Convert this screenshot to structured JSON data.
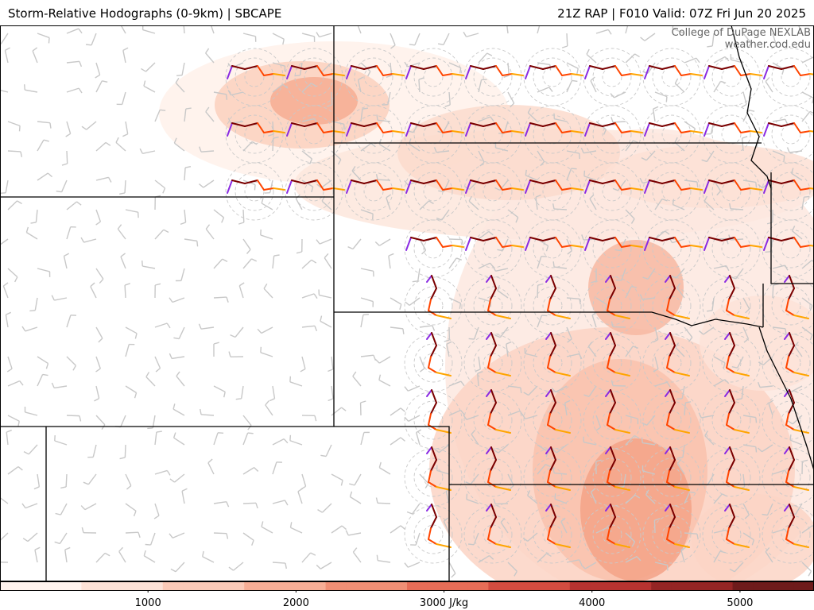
{
  "header": {
    "title_left": "Storm-Relative Hodographs (0-9km) | SBCAPE",
    "title_right": "21Z RAP | F010 Valid: 07Z Fri Jun 20 2025"
  },
  "credit": {
    "line1": "College of DuPage NEXLAB",
    "line2": "weather.cod.edu"
  },
  "colorbar": {
    "unit": "J/kg",
    "tick_labels": [
      "1000",
      "2000",
      "3000 J/kg",
      "4000",
      "5000"
    ],
    "tick_values": [
      1000,
      2000,
      3000,
      4000,
      5000
    ],
    "range": [
      0,
      5500
    ],
    "colors": [
      "#fff3ee",
      "#fde2d7",
      "#fbcab8",
      "#f7ae96",
      "#f08f75",
      "#e66d57",
      "#d34c40",
      "#b73330",
      "#952524",
      "#6e1b1b"
    ]
  },
  "layers": {
    "shaded_field": "SBCAPE",
    "hodograph_colors": [
      "#8a2be2",
      "#7a0000",
      "#ff4500",
      "#ffa500"
    ],
    "barb_color": "#c8c8c8",
    "boundary_color": "#000000"
  }
}
